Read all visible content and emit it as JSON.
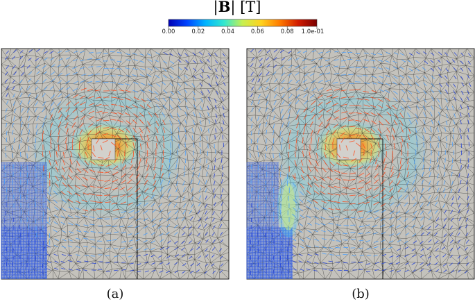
{
  "colorbar": {
    "title_bold": "B",
    "title_unit": "[T]",
    "ticks": [
      "0.00",
      "0.02",
      "0.04",
      "0.06",
      "0.08",
      "1.0e-01"
    ],
    "range": [
      0.0,
      0.1
    ],
    "colormap": [
      "#0000b4",
      "#0044ff",
      "#00b4ff",
      "#33e8cf",
      "#c8f050",
      "#ffd21e",
      "#ff7b00",
      "#d01a00",
      "#7a0000"
    ]
  },
  "panels": [
    {
      "caption": "(a)",
      "variant": "a"
    },
    {
      "caption": "(b)",
      "variant": "b"
    }
  ],
  "colors": {
    "domain_fill": "#c4c2bc",
    "mesh_line": "#2b2b2b",
    "inner_block": "#d3d1cc",
    "arrow_low": "#1f3fd8",
    "arrow_mid": "#4aa0ff",
    "arrow_high": "#ff4a1a"
  }
}
